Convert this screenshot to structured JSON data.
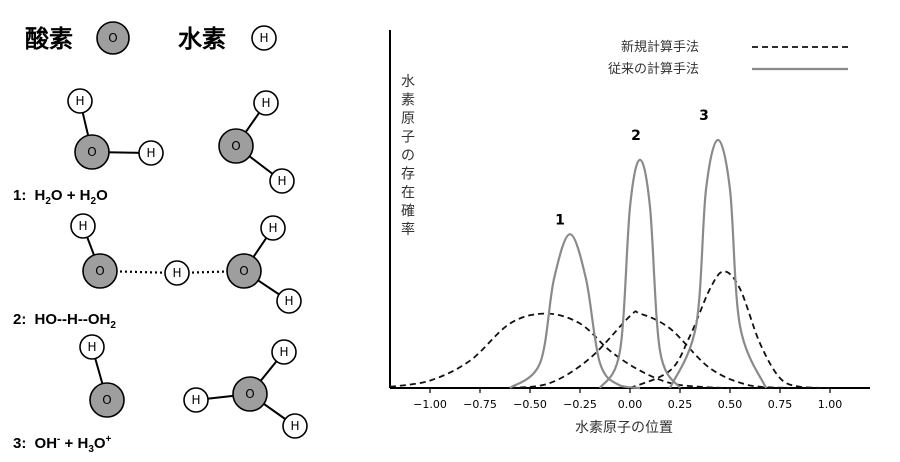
{
  "legend": {
    "oxygen_label": "酸素",
    "oxygen_symbol": "O",
    "hydrogen_label": "水素",
    "hydrogen_symbol": "H"
  },
  "captions": [
    {
      "num": "1:",
      "parts": [
        "H",
        "2",
        "O + H",
        "2",
        "O"
      ]
    },
    {
      "num": "2:",
      "parts": [
        "HO--H--OH",
        "2"
      ]
    },
    {
      "num": "3:",
      "parts": [
        "OH",
        "-",
        " + H",
        "3",
        "O",
        "+"
      ]
    }
  ],
  "chart_data": {
    "type": "line",
    "ylabel": "水素原子の存在確率",
    "xlabel": "水素原子の位置",
    "xlim": [
      -1.2,
      1.2
    ],
    "x_ticks": [
      "−1.00",
      "−0.75",
      "−0.50",
      "−0.25",
      "0.00",
      "0.25",
      "0.50",
      "0.75",
      "1.00"
    ],
    "x_tick_values": [
      -1.0,
      -0.75,
      -0.5,
      -0.25,
      0.0,
      0.25,
      0.5,
      0.75,
      1.0
    ],
    "legend_placement": "top-right",
    "series": [
      {
        "name": "新規計算手法",
        "style": "dashed",
        "color": "#111111",
        "curves": [
          {
            "x": [
              -1.2,
              -1.0,
              -0.8,
              -0.6,
              -0.42,
              -0.25,
              -0.1,
              0.05,
              0.2,
              0.35,
              0.5,
              0.65,
              0.8
            ],
            "y": [
              0.005,
              0.03,
              0.11,
              0.26,
              0.3,
              0.26,
              0.15,
              0.07,
              0.02,
              0.005,
              0.0,
              0.0,
              0.0
            ]
          },
          {
            "x": [
              -0.6,
              -0.4,
              -0.2,
              0.0,
              0.05,
              0.2,
              0.4,
              0.6,
              0.8
            ],
            "y": [
              0.0,
              0.02,
              0.12,
              0.29,
              0.3,
              0.24,
              0.08,
              0.01,
              0.0
            ]
          },
          {
            "x": [
              0.0,
              0.2,
              0.3,
              0.4,
              0.47,
              0.55,
              0.65,
              0.75,
              0.85,
              1.0
            ],
            "y": [
              0.0,
              0.07,
              0.21,
              0.4,
              0.47,
              0.4,
              0.18,
              0.04,
              0.005,
              0.0
            ]
          }
        ]
      },
      {
        "name": "従来の計算手法",
        "style": "solid",
        "color": "#8a8a8a",
        "curves": [
          {
            "x": [
              -0.6,
              -0.45,
              -0.38,
              -0.3,
              -0.22,
              -0.15,
              -0.05,
              0.05
            ],
            "y": [
              0.0,
              0.1,
              0.44,
              0.62,
              0.44,
              0.1,
              0.01,
              0.0
            ]
          },
          {
            "x": [
              -0.15,
              -0.05,
              0.0,
              0.05,
              0.1,
              0.15,
              0.25
            ],
            "y": [
              0.0,
              0.15,
              0.73,
              0.92,
              0.73,
              0.15,
              0.0
            ]
          },
          {
            "x": [
              0.2,
              0.33,
              0.38,
              0.44,
              0.5,
              0.55,
              0.68
            ],
            "y": [
              0.0,
              0.25,
              0.8,
              1.0,
              0.8,
              0.25,
              0.0
            ]
          }
        ]
      }
    ],
    "peak_labels": [
      {
        "text": "1",
        "x": -0.35,
        "y": 0.66
      },
      {
        "text": "2",
        "x": 0.03,
        "y": 1.0
      },
      {
        "text": "3",
        "x": 0.37,
        "y": 1.08
      }
    ]
  }
}
